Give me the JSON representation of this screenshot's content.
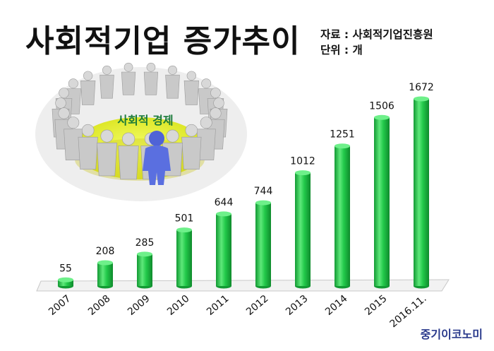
{
  "header": {
    "title": "사회적기업 증가추이",
    "source": "자료 : 사회적기업진흥원",
    "unit": "단위 : 개"
  },
  "illustration": {
    "label": "사회적 경제",
    "icon": "people-circle-icon"
  },
  "brand": "중기이코노미",
  "colors": {
    "bar": "#22c94a",
    "bar_dark": "#129a33",
    "bar_light": "#6ef08a"
  },
  "chart_data": {
    "type": "bar",
    "title": "사회적기업 증가추이",
    "xlabel": "",
    "ylabel": "",
    "categories": [
      "2007",
      "2008",
      "2009",
      "2010",
      "2011",
      "2012",
      "2013",
      "2014",
      "2015",
      "2016.11."
    ],
    "values": [
      55,
      208,
      285,
      501,
      644,
      744,
      1012,
      1251,
      1506,
      1672
    ],
    "unit": "개",
    "ylim": [
      0,
      1700
    ],
    "grid": false,
    "legend": "none"
  }
}
